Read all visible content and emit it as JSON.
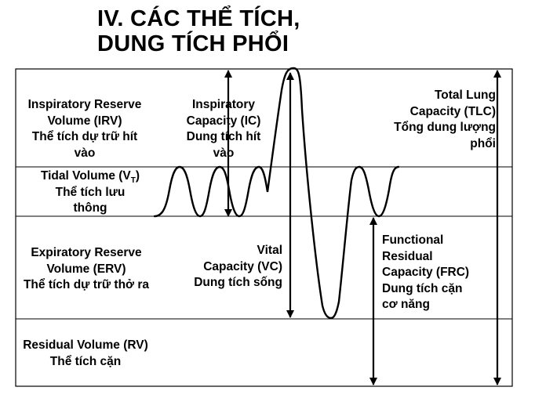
{
  "title": {
    "line1": "IV. CÁC THỂ TÍCH,",
    "line2": "DUNG TÍCH PHỔI"
  },
  "irv": {
    "line1": "Inspiratory Reserve",
    "line2": "Volume (IRV)",
    "line3": "Thể tích dự trữ hít",
    "line4": "vào"
  },
  "ic": {
    "line1": "Inspiratory",
    "line2": "Capacity (IC)",
    "line3": "Dung tích hít",
    "line4": "vào"
  },
  "tlc": {
    "line1": "Total Lung",
    "line2": "Capacity (TLC)",
    "line3": "Tổng dung lượng",
    "line4": "phổi"
  },
  "tv": {
    "line1_prefix": "Tidal Volume (V",
    "line1_sub": "T",
    "line1_suffix": ")",
    "line2": "Thể tích lưu",
    "line3": "thông"
  },
  "erv": {
    "line1": "Expiratory Reserve",
    "line2": "Volume (ERV)",
    "line3": "Thể tích dự trữ thở ra"
  },
  "vc": {
    "line1": "Vital",
    "line2": "Capacity (VC)",
    "line3": "Dung tích sống"
  },
  "frc": {
    "line1": "Functional",
    "line2": "Residual",
    "line3": "Capacity (FRC)",
    "line4": "Dung tích cặn",
    "line5": "cơ năng"
  },
  "rv": {
    "line1": "Residual Volume (RV)",
    "line2": "Thể tích cặn"
  }
}
